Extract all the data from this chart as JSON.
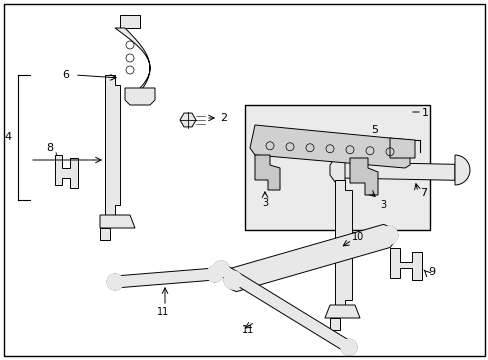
{
  "background_color": "#ffffff",
  "line_color": "#000000",
  "part_fill": "#e8e8e8",
  "box_fill": "#ebebeb",
  "figsize": [
    4.89,
    3.6
  ],
  "dpi": 100
}
